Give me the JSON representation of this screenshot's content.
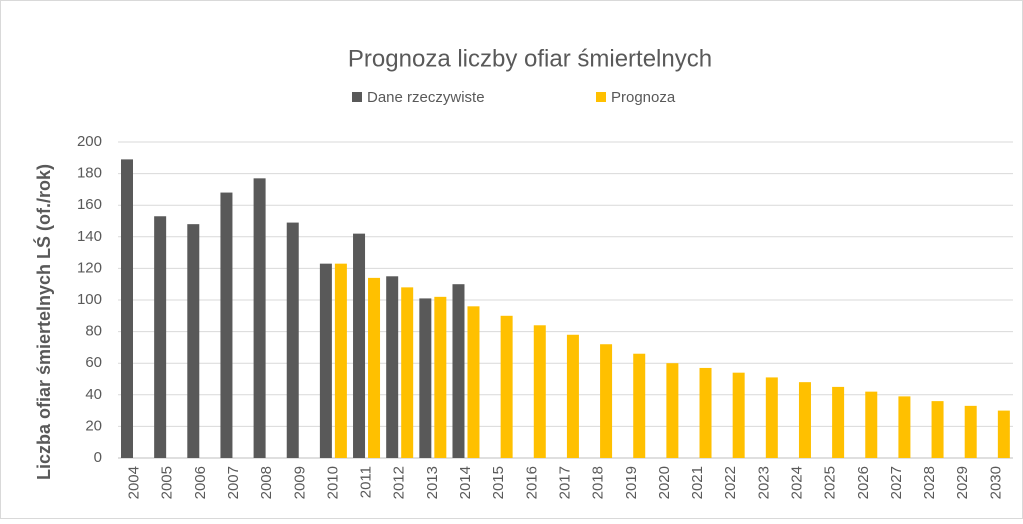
{
  "chart_data": {
    "type": "bar",
    "title": "Prognoza liczby ofiar śmiertelnych",
    "y_label": "Liczba ofiar śmiertelnych LŚ (of./rok)",
    "categories": [
      "2004",
      "2005",
      "2006",
      "2007",
      "2008",
      "2009",
      "2010",
      "2011",
      "2012",
      "2013",
      "2014",
      "2015",
      "2016",
      "2017",
      "2018",
      "2019",
      "2020",
      "2021",
      "2022",
      "2023",
      "2024",
      "2025",
      "2026",
      "2027",
      "2028",
      "2029",
      "2030"
    ],
    "series": [
      {
        "name": "Dane rzeczywiste",
        "color": "#595959",
        "values": [
          189,
          153,
          148,
          168,
          177,
          149,
          123,
          142,
          115,
          101,
          110,
          null,
          null,
          null,
          null,
          null,
          null,
          null,
          null,
          null,
          null,
          null,
          null,
          null,
          null,
          null,
          null
        ]
      },
      {
        "name": "Prognoza",
        "color": "#ffc000",
        "values": [
          null,
          null,
          null,
          null,
          null,
          null,
          123,
          114,
          108,
          102,
          96,
          90,
          84,
          78,
          72,
          66,
          60,
          57,
          54,
          51,
          48,
          45,
          42,
          39,
          36,
          33,
          30
        ]
      }
    ],
    "ylim": [
      0,
      200
    ],
    "yticks": [
      0,
      20,
      40,
      60,
      80,
      100,
      120,
      140,
      160,
      180,
      200
    ],
    "grid": true,
    "legend": "top"
  }
}
